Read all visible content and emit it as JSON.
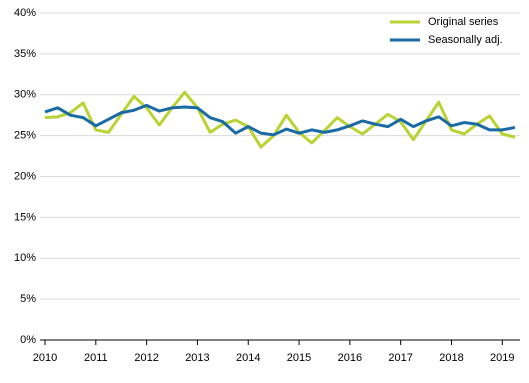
{
  "chart_data": {
    "type": "line",
    "categories": [
      "2010",
      null,
      null,
      null,
      "2011",
      null,
      null,
      null,
      "2012",
      null,
      null,
      null,
      "2013",
      null,
      null,
      null,
      "2014",
      null,
      null,
      null,
      "2015",
      null,
      null,
      null,
      "2016",
      null,
      null,
      null,
      "2017",
      null,
      null,
      null,
      "2018",
      null,
      null,
      null,
      "2019",
      null
    ],
    "series": [
      {
        "name": "Original series",
        "color": "#b7d334",
        "values": [
          27.2,
          27.3,
          27.8,
          29.0,
          25.7,
          25.4,
          27.6,
          29.8,
          28.4,
          26.3,
          28.4,
          30.3,
          28.4,
          25.4,
          26.4,
          26.9,
          26.1,
          23.6,
          25.0,
          27.5,
          25.4,
          24.1,
          25.6,
          27.2,
          26.1,
          25.2,
          26.4,
          27.6,
          26.7,
          24.5,
          26.8,
          29.1,
          25.7,
          25.2,
          26.4,
          27.4,
          25.2,
          24.8
        ]
      },
      {
        "name": "Seasonally adj.",
        "color": "#1a6aa5",
        "values": [
          27.9,
          28.4,
          27.5,
          27.2,
          26.2,
          27.0,
          27.8,
          28.1,
          28.7,
          28.0,
          28.4,
          28.5,
          28.4,
          27.2,
          26.7,
          25.3,
          26.1,
          25.3,
          25.1,
          25.8,
          25.3,
          25.7,
          25.4,
          25.7,
          26.2,
          26.8,
          26.4,
          26.1,
          27.0,
          26.1,
          26.8,
          27.3,
          26.2,
          26.6,
          26.4,
          25.7,
          25.7,
          26.0
        ]
      }
    ],
    "ylim": [
      0,
      40
    ],
    "yticks": [
      {
        "value": 0,
        "label": "0%"
      },
      {
        "value": 5,
        "label": "5%"
      },
      {
        "value": 10,
        "label": "10%"
      },
      {
        "value": 15,
        "label": "15%"
      },
      {
        "value": 20,
        "label": "20%"
      },
      {
        "value": 25,
        "label": "25%"
      },
      {
        "value": 30,
        "label": "30%"
      },
      {
        "value": 35,
        "label": "35%"
      },
      {
        "value": 40,
        "label": "40%"
      }
    ],
    "grid": true,
    "legend": "top-right"
  }
}
